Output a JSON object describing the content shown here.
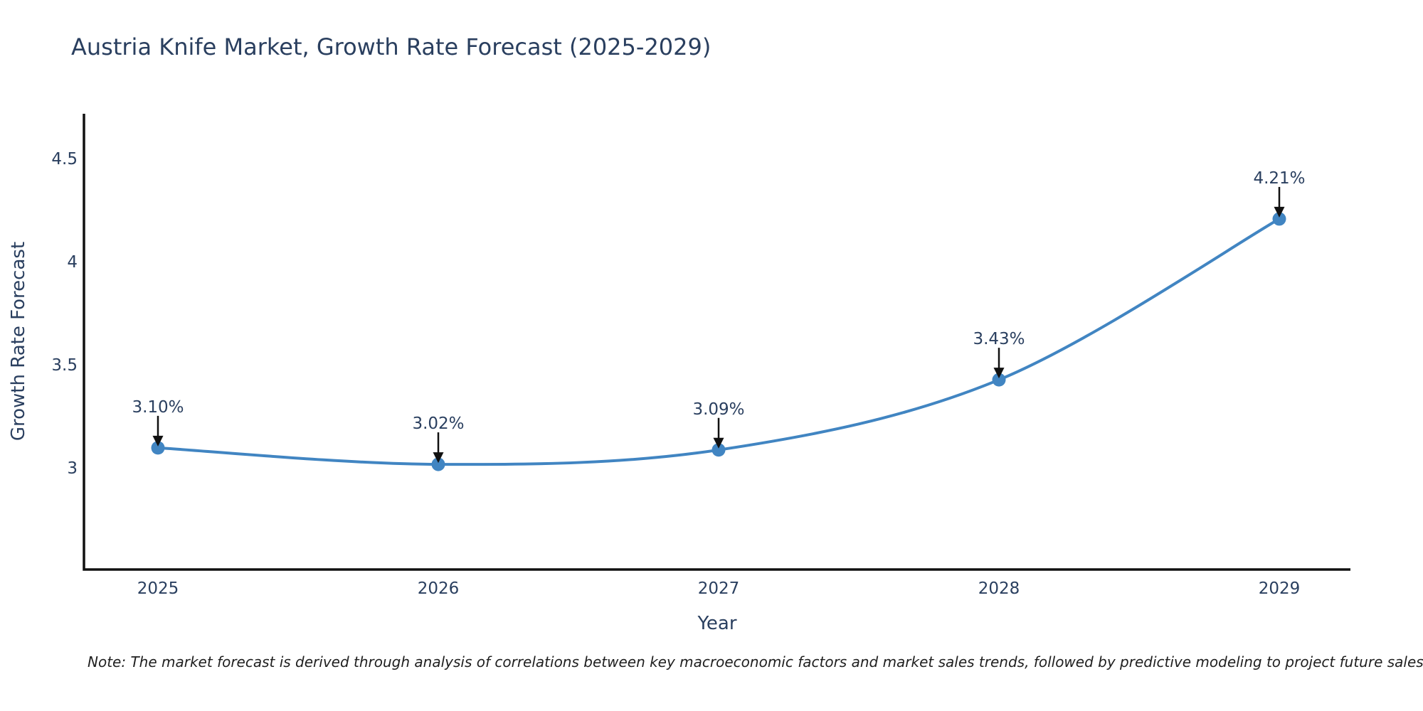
{
  "page": {
    "background": "#ffffff"
  },
  "chart_data": {
    "type": "line",
    "title": "Austria Knife Market, Growth Rate Forecast (2025-2029)",
    "categories": [
      "2025",
      "2026",
      "2027",
      "2028",
      "2029"
    ],
    "values": [
      3.1,
      3.02,
      3.09,
      3.43,
      4.21
    ],
    "point_labels": [
      "3.10%",
      "3.02%",
      "3.09%",
      "3.43%",
      "4.21%"
    ],
    "xlabel": "Year",
    "ylabel": "Growth Rate Forecast",
    "yticks": [
      3,
      3.5,
      4,
      4.5
    ],
    "ytick_labels": [
      "3",
      "3.5",
      "4",
      "4.5"
    ],
    "ylim": [
      2.51,
      4.72
    ],
    "grid": false,
    "legend": null,
    "line_shape": "spline",
    "annotation_style": "value-label-with-down-arrow",
    "colors": {
      "line": "#4185c2",
      "marker": "#4185c2",
      "axis": "#111111",
      "text": "#2a3f5f",
      "annotation_arrow": "#111111",
      "note_text": "#1f1f1f"
    }
  },
  "footnote": "Note: The market forecast is derived through analysis of correlations between key macroeconomic factors and market sales trends, followed by predictive modeling to project future sales"
}
